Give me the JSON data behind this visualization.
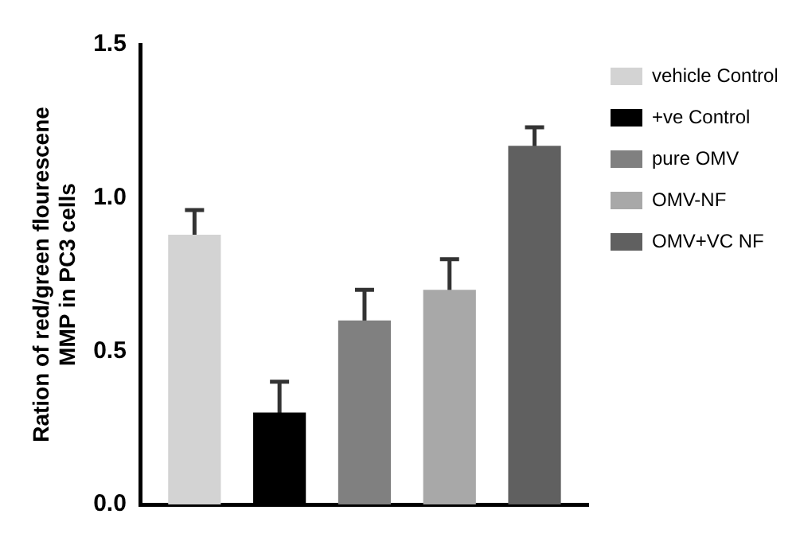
{
  "chart_data": {
    "type": "bar",
    "ylabel": "Ration of red/green flourescene\nMMP in PC3 cells",
    "categories": [
      null
    ],
    "series": [
      {
        "name": "vehicle Control",
        "color": "#d3d3d3",
        "values": [
          0.88
        ],
        "errors": [
          0.08
        ]
      },
      {
        "name": "+ve Control",
        "color": "#000000",
        "values": [
          0.3
        ],
        "errors": [
          0.1
        ]
      },
      {
        "name": "pure OMV",
        "color": "#808080",
        "values": [
          0.6
        ],
        "errors": [
          0.1
        ]
      },
      {
        "name": "OMV-NF",
        "color": "#a8a8a8",
        "values": [
          0.7
        ],
        "errors": [
          0.1
        ]
      },
      {
        "name": "OMV+VC NF",
        "color": "#606060",
        "values": [
          1.17
        ],
        "errors": [
          0.06
        ]
      }
    ],
    "ylim": [
      0,
      1.5
    ],
    "yticks": [
      {
        "value": 0,
        "label": "0.0"
      },
      {
        "value": 0.5,
        "label": "0.5"
      },
      {
        "value": 1,
        "label": "1.0"
      },
      {
        "value": 1.5,
        "label": "1.5"
      }
    ],
    "grid": false,
    "legend": "right"
  }
}
